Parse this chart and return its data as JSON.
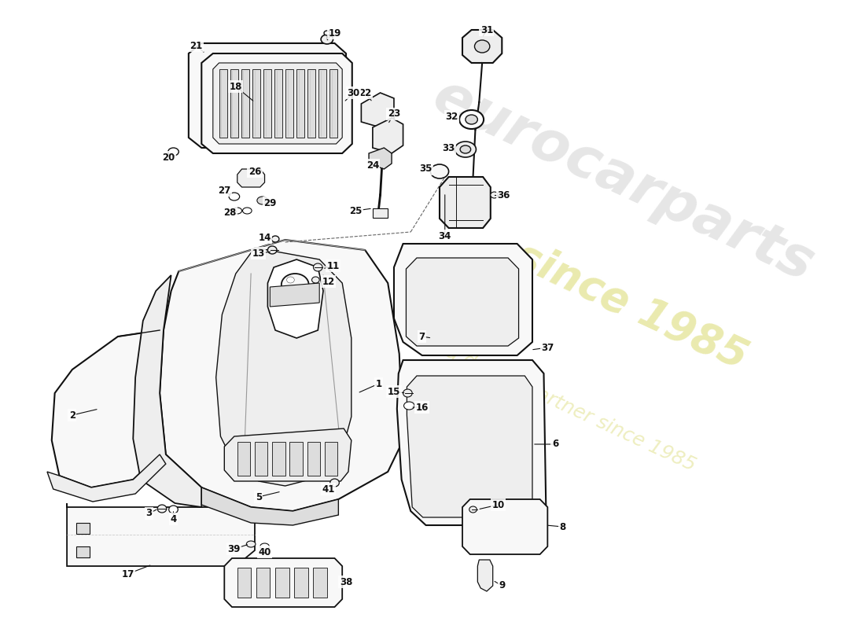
{
  "fig_width": 11.0,
  "fig_height": 8.0,
  "dpi": 100,
  "bg": "#ffffff",
  "lc": "#111111",
  "watermark": {
    "text1": "eurocarparts",
    "text2": "since 1985",
    "text3": "a dealer partner since 1985"
  }
}
